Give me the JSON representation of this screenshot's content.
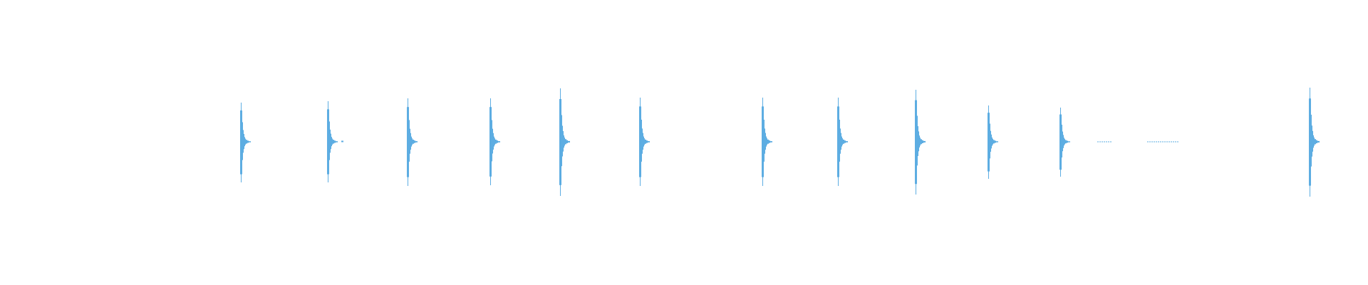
{
  "waveform": {
    "color": "#5dade2",
    "background": "#ffffff",
    "transients": [
      {
        "onset_fraction": 0.176,
        "peak_up": 0.55,
        "peak_down": 0.57
      },
      {
        "onset_fraction": 0.2396,
        "peak_up": 0.57,
        "peak_down": 0.57,
        "tail_blip": true
      },
      {
        "onset_fraction": 0.298,
        "peak_up": 0.61,
        "peak_down": 0.62
      },
      {
        "onset_fraction": 0.3583,
        "peak_up": 0.61,
        "peak_down": 0.61
      },
      {
        "onset_fraction": 0.4094,
        "peak_up": 0.75,
        "peak_down": 0.76
      },
      {
        "onset_fraction": 0.4677,
        "peak_up": 0.62,
        "peak_down": 0.62
      },
      {
        "onset_fraction": 0.5573,
        "peak_up": 0.62,
        "peak_down": 0.62
      },
      {
        "onset_fraction": 0.6125,
        "peak_up": 0.62,
        "peak_down": 0.62
      },
      {
        "onset_fraction": 0.6693,
        "peak_up": 0.73,
        "peak_down": 0.74
      },
      {
        "onset_fraction": 0.7224,
        "peak_up": 0.51,
        "peak_down": 0.52
      },
      {
        "onset_fraction": 0.775,
        "peak_up": 0.48,
        "peak_down": 0.49
      },
      {
        "onset_fraction": 0.9573,
        "peak_up": 0.76,
        "peak_down": 0.77
      }
    ],
    "noise_segments": [
      {
        "start_fraction": 0.8021,
        "end_fraction": 0.8125
      },
      {
        "start_fraction": 0.8385,
        "end_fraction": 0.8604
      }
    ]
  }
}
